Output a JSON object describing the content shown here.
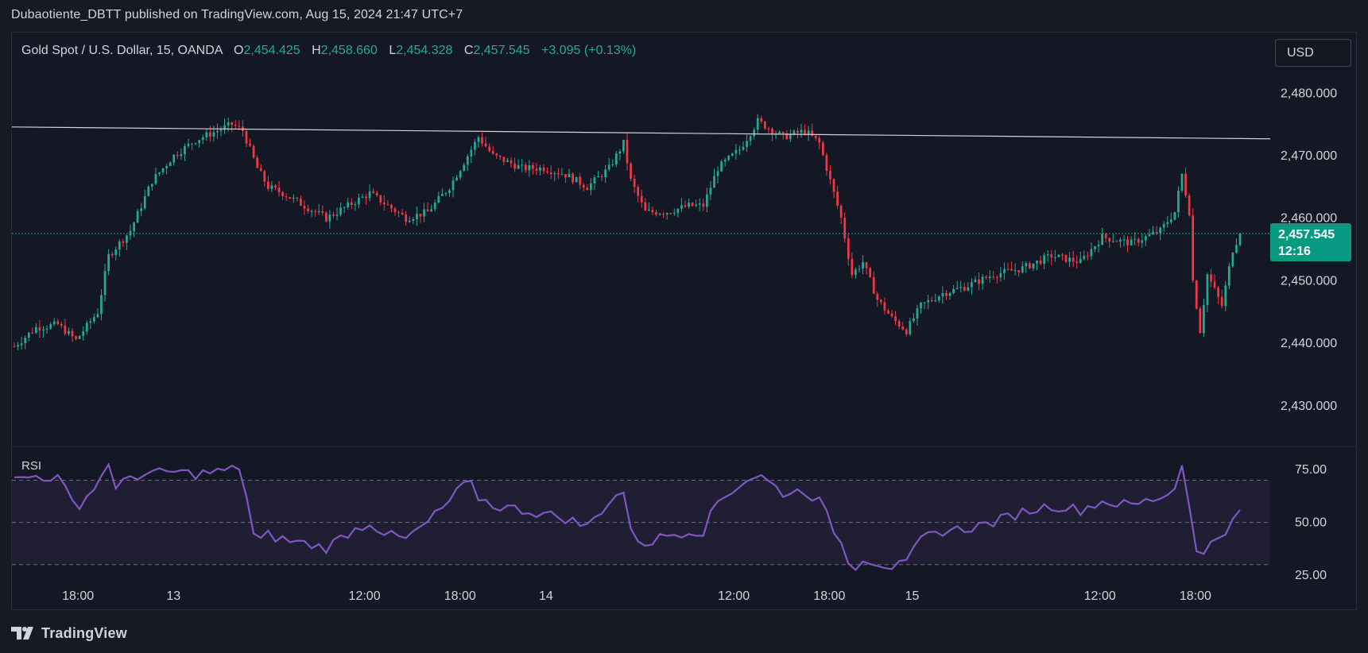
{
  "header": {
    "published": "Dubaotiente_DBTT published on TradingView.com, Aug 15, 2024 21:47 UTC+7"
  },
  "legend": {
    "symbol": "Gold Spot / U.S. Dollar, 15, OANDA",
    "o_label": "O",
    "o_value": "2,454.425",
    "h_label": "H",
    "h_value": "2,458.660",
    "l_label": "L",
    "l_value": "2,454.328",
    "c_label": "C",
    "c_value": "2,457.545",
    "change": "+3.095 (+0.13%)"
  },
  "currency_button": "USD",
  "price_badge": {
    "price": "2,457.545",
    "countdown": "12:16"
  },
  "rsi_label": "RSI",
  "footer": {
    "brand": "TradingView"
  },
  "colors": {
    "background": "#161a25",
    "up": "#22ab94",
    "down": "#f23645",
    "rsi_line": "#7e57c2",
    "rsi_band": "#2a2540",
    "trendline": "#d1d4dc",
    "last_price": "#089981"
  },
  "icons": {
    "logo": "tradingview-logo-icon"
  },
  "chart_data": [
    {
      "type": "candlestick",
      "title": "Gold Spot / U.S. Dollar, 15, OANDA",
      "y_ticks": [
        "2,480.000",
        "2,470.000",
        "2,460.000",
        "2,450.000",
        "2,440.000",
        "2,430.000"
      ],
      "y_tick_values": [
        2480,
        2470,
        2460,
        2450,
        2440,
        2430
      ],
      "ylim": [
        2423.5,
        2485.5
      ],
      "last_price": 2457.545,
      "x_tick_labels": [
        "18:00",
        "13",
        "12:00",
        "18:00",
        "14",
        "12:00",
        "18:00",
        "15",
        "12:00",
        "18:00"
      ],
      "trendline": {
        "from_price": 2474.6,
        "to_price": 2472.7
      },
      "price_path": [
        [
          0,
          2439.5
        ],
        [
          6,
          2442.5
        ],
        [
          12,
          2443
        ],
        [
          17,
          2440.5
        ],
        [
          23,
          2445
        ],
        [
          26,
          2454
        ],
        [
          32,
          2458
        ],
        [
          38,
          2466
        ],
        [
          44,
          2470
        ],
        [
          50,
          2472.5
        ],
        [
          56,
          2474
        ],
        [
          60,
          2475
        ],
        [
          63,
          2474
        ],
        [
          67,
          2468
        ],
        [
          70,
          2465
        ],
        [
          74,
          2464
        ],
        [
          80,
          2462
        ],
        [
          86,
          2460
        ],
        [
          92,
          2462
        ],
        [
          98,
          2464
        ],
        [
          103,
          2462
        ],
        [
          108,
          2460
        ],
        [
          114,
          2461
        ],
        [
          120,
          2465
        ],
        [
          125,
          2470
        ],
        [
          128,
          2473
        ],
        [
          132,
          2470
        ],
        [
          140,
          2468
        ],
        [
          146,
          2468
        ],
        [
          152,
          2467
        ],
        [
          158,
          2465
        ],
        [
          164,
          2468
        ],
        [
          168,
          2472
        ],
        [
          170,
          2466
        ],
        [
          174,
          2461
        ],
        [
          180,
          2461
        ],
        [
          186,
          2462
        ],
        [
          190,
          2462
        ],
        [
          194,
          2468
        ],
        [
          200,
          2471
        ],
        [
          205,
          2475.5
        ],
        [
          212,
          2473
        ],
        [
          218,
          2474
        ],
        [
          222,
          2472
        ],
        [
          225,
          2466
        ],
        [
          228,
          2460
        ],
        [
          231,
          2451
        ],
        [
          234,
          2453
        ],
        [
          238,
          2447
        ],
        [
          242,
          2444
        ],
        [
          246,
          2442
        ],
        [
          250,
          2446
        ],
        [
          256,
          2448
        ],
        [
          262,
          2449
        ],
        [
          270,
          2451
        ],
        [
          278,
          2452
        ],
        [
          286,
          2454
        ],
        [
          294,
          2453
        ],
        [
          300,
          2457
        ],
        [
          308,
          2456
        ],
        [
          316,
          2458
        ],
        [
          320,
          2461
        ],
        [
          322,
          2467
        ],
        [
          324,
          2461
        ],
        [
          325,
          2450
        ],
        [
          327,
          2442
        ],
        [
          329,
          2451
        ],
        [
          333,
          2446
        ],
        [
          336,
          2455
        ],
        [
          338,
          2457.5
        ]
      ],
      "n_candles": 339
    },
    {
      "type": "line",
      "title": "RSI",
      "y_ticks": [
        "75.00",
        "50.00",
        "25.00"
      ],
      "y_tick_values": [
        75,
        50,
        25
      ],
      "band": [
        30,
        70
      ],
      "ylim": [
        19,
        86
      ],
      "rsi_path": [
        [
          0,
          70
        ],
        [
          6,
          72
        ],
        [
          12,
          71
        ],
        [
          17,
          57
        ],
        [
          23,
          68
        ],
        [
          26,
          79
        ],
        [
          28,
          65
        ],
        [
          32,
          72
        ],
        [
          38,
          73
        ],
        [
          44,
          74
        ],
        [
          50,
          73
        ],
        [
          56,
          74
        ],
        [
          60,
          75
        ],
        [
          63,
          77
        ],
        [
          65,
          48
        ],
        [
          67,
          40
        ],
        [
          70,
          44
        ],
        [
          74,
          42
        ],
        [
          80,
          40
        ],
        [
          86,
          38
        ],
        [
          92,
          45
        ],
        [
          98,
          50
        ],
        [
          103,
          44
        ],
        [
          108,
          42
        ],
        [
          114,
          50
        ],
        [
          120,
          60
        ],
        [
          125,
          70
        ],
        [
          128,
          62
        ],
        [
          132,
          58
        ],
        [
          140,
          56
        ],
        [
          146,
          54
        ],
        [
          152,
          52
        ],
        [
          158,
          48
        ],
        [
          164,
          60
        ],
        [
          168,
          65
        ],
        [
          170,
          45
        ],
        [
          174,
          40
        ],
        [
          180,
          44
        ],
        [
          186,
          46
        ],
        [
          190,
          46
        ],
        [
          194,
          60
        ],
        [
          200,
          68
        ],
        [
          205,
          73
        ],
        [
          212,
          64
        ],
        [
          218,
          65
        ],
        [
          222,
          60
        ],
        [
          225,
          50
        ],
        [
          228,
          40
        ],
        [
          231,
          28
        ],
        [
          234,
          33
        ],
        [
          238,
          31
        ],
        [
          242,
          29
        ],
        [
          246,
          30
        ],
        [
          250,
          42
        ],
        [
          256,
          46
        ],
        [
          262,
          47
        ],
        [
          270,
          50
        ],
        [
          278,
          55
        ],
        [
          286,
          58
        ],
        [
          294,
          56
        ],
        [
          300,
          60
        ],
        [
          308,
          58
        ],
        [
          316,
          62
        ],
        [
          320,
          66
        ],
        [
          322,
          78
        ],
        [
          324,
          60
        ],
        [
          325,
          43
        ],
        [
          327,
          28
        ],
        [
          329,
          40
        ],
        [
          333,
          45
        ],
        [
          336,
          50
        ],
        [
          338,
          55
        ]
      ]
    }
  ]
}
